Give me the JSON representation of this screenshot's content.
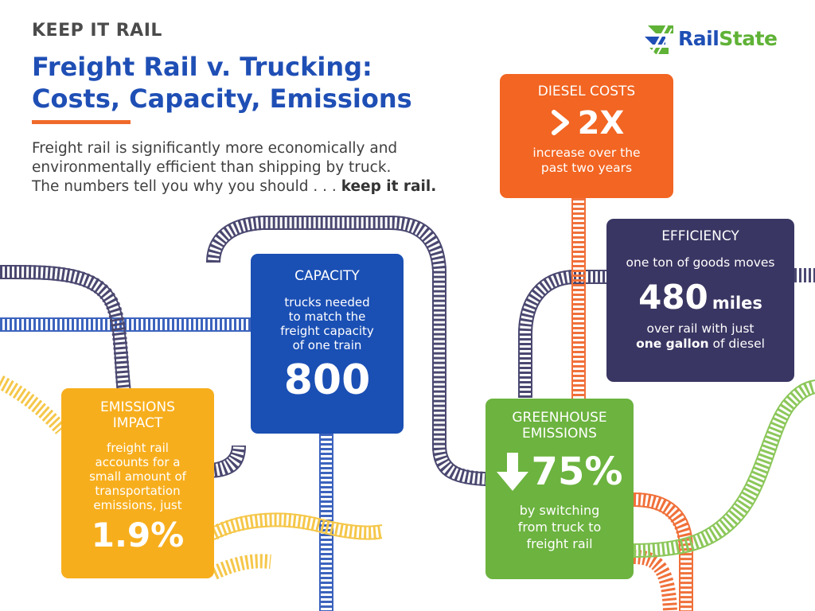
{
  "header": {
    "kicker": "KEEP IT RAIL",
    "title_line1": "Freight Rail v. Trucking:",
    "title_line2": "Costs, Capacity, Emissions",
    "intro_line1": "Freight rail is significantly more economically and",
    "intro_line2": "environmentally efficient than shipping by truck.",
    "intro_line3": "The numbers tell you why you should . . .",
    "intro_emphasis": "keep it rail."
  },
  "logo": {
    "rail": "Rail",
    "state": "State"
  },
  "cards": {
    "diesel": {
      "heading": "DIESEL COSTS",
      "stat": "2X",
      "icon": "chevron-right-icon",
      "desc_line1": "increase over the",
      "desc_line2": "past two years"
    },
    "efficiency": {
      "heading": "EFFICIENCY",
      "desc_line1": "one ton of goods moves",
      "stat": "480",
      "unit": "miles",
      "desc_line2": "over rail with just",
      "desc_emphasis": "one gallon",
      "desc_line3": " of diesel"
    },
    "capacity": {
      "heading": "CAPACITY",
      "desc_line1": "trucks needed",
      "desc_line2": "to match the",
      "desc_line3": "freight capacity",
      "desc_line4": "of one train",
      "stat": "800"
    },
    "emissions": {
      "heading_line1": "EMISSIONS",
      "heading_line2": "IMPACT",
      "desc_line1": "freight rail",
      "desc_line2": "accounts for a",
      "desc_line3": "small amount of",
      "desc_line4": "transportation",
      "desc_line5": "emissions, just",
      "stat": "1.9%"
    },
    "greenhouse": {
      "heading_line1": "GREENHOUSE",
      "heading_line2": "EMISSIONS",
      "icon": "arrow-down-icon",
      "stat": "75%",
      "desc_line1": "by switching",
      "desc_line2": "from truck to",
      "desc_line3": "freight rail"
    }
  },
  "colors": {
    "navy": "#1f4fb5",
    "orange": "#f26522",
    "purple": "#3a3663",
    "blue": "#1a4fb4",
    "yellow": "#f7ae1d",
    "green": "#6cb33f",
    "track_blue": "#3c63bd",
    "track_purple": "#4a4870",
    "track_yellow": "#f5c74a",
    "track_orange": "#f0703a",
    "track_green": "#8cc75a"
  }
}
